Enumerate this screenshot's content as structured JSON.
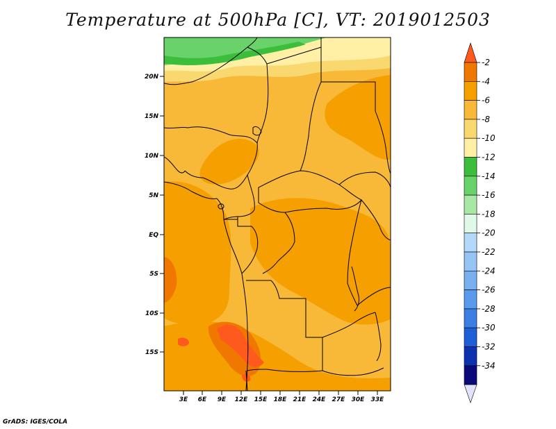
{
  "title": "Temperature at 500hPa [C], VT: 2019012503",
  "credit": "GrADS: IGES/COLA",
  "axes": {
    "lat_labels": [
      "20N",
      "15N",
      "10N",
      "5N",
      "EQ",
      "5S",
      "10S",
      "15S"
    ],
    "lon_labels": [
      "3E",
      "6E",
      "9E",
      "12E",
      "15E",
      "18E",
      "21E",
      "24E",
      "27E",
      "30E",
      "33E"
    ]
  },
  "colorbar": {
    "labels": [
      "-2",
      "-4",
      "-6",
      "-8",
      "-10",
      "-12",
      "-14",
      "-16",
      "-18",
      "-20",
      "-22",
      "-24",
      "-26",
      "-28",
      "-30",
      "-32",
      "-34"
    ],
    "colors": [
      "#ff5a1e",
      "#f07800",
      "#f5a000",
      "#f8b838",
      "#fad870",
      "#fff0a6",
      "#3cbe3c",
      "#6ad26a",
      "#a8e8a4",
      "#e0f8e8",
      "#b4d8fa",
      "#96c4f4",
      "#78b0f0",
      "#5a9aec",
      "#3c7ee4",
      "#1e5ed6",
      "#0c32b0",
      "#0a0a7a",
      "#e2e2fa"
    ]
  },
  "fields": {
    "background": "#f8b838",
    "warm": "#f5a000",
    "warmer": "#f07800",
    "hot": "#ff5a1e",
    "cool": "#fad870",
    "cooler": "#fff0a6",
    "green": "#6ad26a",
    "green_dark": "#3cbe3c"
  }
}
